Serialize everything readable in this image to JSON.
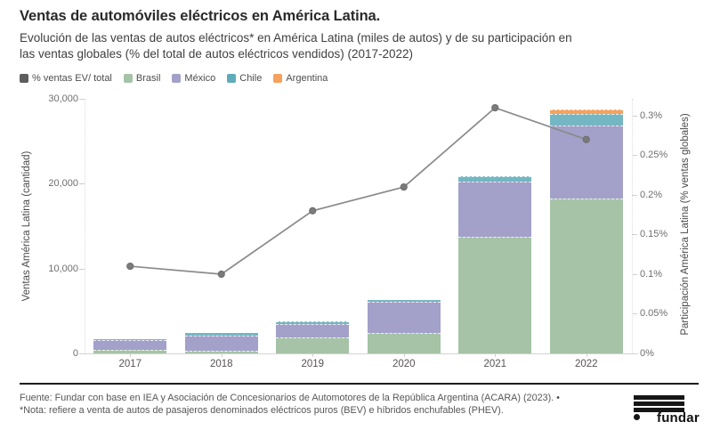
{
  "header": {
    "title": "Ventas de automóviles eléctricos en América Latina.",
    "subtitle_line1": "Evolución de las ventas de autos eléctricos* en América Latina (miles de autos) y de su participación en",
    "subtitle_line2": "las ventas globales (% del total de autos eléctricos vendidos) (2017-2022)"
  },
  "legend": {
    "items": [
      {
        "label": "% ventas EV/ total",
        "color": "#5e5e5e"
      },
      {
        "label": "Brasil",
        "color": "#a6c3a7"
      },
      {
        "label": "México",
        "color": "#a3a1c9"
      },
      {
        "label": "Chile",
        "color": "#5fabb9"
      },
      {
        "label": "Argentina",
        "color": "#f6a15e"
      }
    ]
  },
  "chart_data": {
    "type": "bar",
    "subtype": "stacked-column-with-line",
    "title": "Ventas de automóviles eléctricos en América Latina (2017-2022)",
    "categories": [
      "2017",
      "2018",
      "2019",
      "2020",
      "2021",
      "2022"
    ],
    "series": [
      {
        "name": "Brasil",
        "color": "#a6c3a7",
        "values": [
          380,
          350,
          1880,
          2400,
          13750,
          18300
        ]
      },
      {
        "name": "México",
        "color": "#a3a1c9",
        "values": [
          1210,
          1800,
          1590,
          3670,
          6460,
          8550
        ]
      },
      {
        "name": "Chile",
        "color": "#74b7c2",
        "pattern": "dots",
        "values": [
          60,
          230,
          300,
          210,
          700,
          1400
        ]
      },
      {
        "name": "Argentina",
        "color": "#f6a15e",
        "values": [
          0,
          0,
          0,
          0,
          0,
          520
        ]
      }
    ],
    "line_series": {
      "name": "% ventas EV/ total",
      "color": "#8a8a8a",
      "marker_color": "#7b7b7b",
      "values": [
        0.11,
        0.1,
        0.18,
        0.21,
        0.31,
        0.27
      ]
    },
    "left_axis": {
      "title": "Ventas América Latina (cantidad)",
      "tick_labels": [
        "0",
        "10,000",
        "20,000",
        "30,000"
      ],
      "tick_values": [
        0,
        10000,
        20000,
        30000
      ],
      "max": 30000
    },
    "right_axis": {
      "title": "Participación América Latina (% ventas globales)",
      "tick_labels": [
        "0%",
        "0.05%",
        "0.1%",
        "0.15%",
        "0.2%",
        "0.25%",
        "0.3%"
      ],
      "tick_values": [
        0,
        0.05,
        0.1,
        0.15,
        0.2,
        0.25,
        0.3
      ],
      "max_at_plot_top": 0.3213
    },
    "x_axis": {
      "tick_labels": [
        "2017",
        "2018",
        "2019",
        "2020",
        "2021",
        "2022"
      ]
    },
    "grid": "off",
    "legend_position": "top"
  },
  "footer": {
    "source": "Fuente: Fundar con base en IEA y Asociación de Concesionarios de Automotores de la República Argentina (ACARA) (2023). •",
    "note": "*Nota: refiere a venta de autos de pasajeros denominados eléctricos puros (BEV) e híbridos enchufables (PHEV).",
    "logo_text": "fundar"
  }
}
